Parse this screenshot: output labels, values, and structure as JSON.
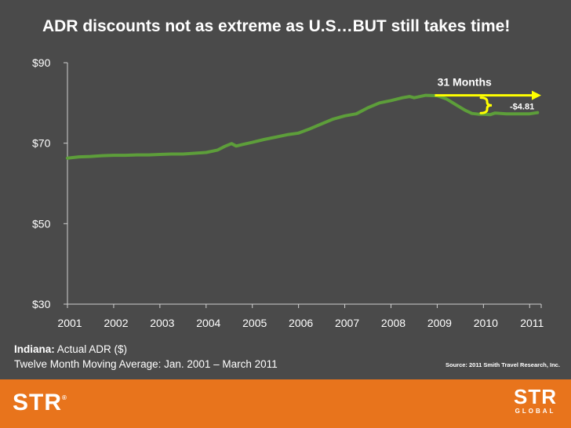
{
  "chart_data": {
    "type": "line",
    "title": "ADR discounts not as extreme as U.S…BUT still takes time!",
    "xlabel": "",
    "ylabel": "",
    "x_tick_labels": [
      "2001",
      "2002",
      "2003",
      "2004",
      "2005",
      "2006",
      "2007",
      "2008",
      "2009",
      "2010",
      "2011"
    ],
    "y_tick_labels": [
      "$90",
      "$70",
      "$50",
      "$30"
    ],
    "y_ticks": [
      90,
      70,
      50,
      30
    ],
    "ylim": [
      30,
      90
    ],
    "xlim": [
      2001.0,
      2011.25
    ],
    "series": [
      {
        "name": "Indiana Actual ADR (Twelve Month Moving Average)",
        "color": "#5d9e3a",
        "x": [
          2001.0,
          2001.25,
          2001.5,
          2001.75,
          2002.0,
          2002.25,
          2002.5,
          2002.75,
          2003.0,
          2003.25,
          2003.5,
          2003.75,
          2004.0,
          2004.25,
          2004.4,
          2004.55,
          2004.65,
          2004.8,
          2005.0,
          2005.25,
          2005.5,
          2005.75,
          2006.0,
          2006.25,
          2006.5,
          2006.75,
          2007.0,
          2007.25,
          2007.5,
          2007.75,
          2008.0,
          2008.25,
          2008.4,
          2008.5,
          2008.75,
          2009.0,
          2009.2,
          2009.4,
          2009.6,
          2009.75,
          2009.9,
          2010.0,
          2010.15,
          2010.25,
          2010.5,
          2010.75,
          2011.0,
          2011.17
        ],
        "values": [
          66.3,
          66.6,
          66.7,
          66.9,
          67.0,
          67.0,
          67.1,
          67.1,
          67.2,
          67.3,
          67.3,
          67.5,
          67.7,
          68.3,
          69.2,
          69.9,
          69.3,
          69.7,
          70.2,
          70.9,
          71.5,
          72.1,
          72.5,
          73.6,
          74.8,
          76.0,
          76.8,
          77.3,
          78.8,
          80.0,
          80.6,
          81.3,
          81.6,
          81.3,
          81.9,
          81.8,
          81.0,
          79.6,
          78.2,
          77.4,
          77.2,
          77.2,
          77.1,
          77.5,
          77.3,
          77.3,
          77.3,
          77.6
        ]
      }
    ],
    "annotations": [
      {
        "text": "31 Months",
        "type": "arrow",
        "from_x": 2009.0,
        "to_x": 2011.25,
        "y": 81.9
      },
      {
        "text": "-$4.81",
        "type": "brace",
        "x": 2010.08,
        "y_top": 81.9,
        "y_bottom": 77.1
      }
    ]
  },
  "caption": {
    "market_label": "Indiana:",
    "metric": " Actual ADR ($)",
    "subtitle": "Twelve Month Moving Average: Jan. 2001 – March 2011"
  },
  "source": "Source: 2011 Smith Travel Research, Inc.",
  "footer": {
    "left_logo": "STR",
    "left_logo_mark": "®",
    "right_logo": "STR",
    "right_logo_sub": "GLOBAL"
  },
  "colors": {
    "background": "#4a4a4a",
    "line": "#5d9e3a",
    "annotation": "#ffff00",
    "footer": "#e8741c"
  }
}
